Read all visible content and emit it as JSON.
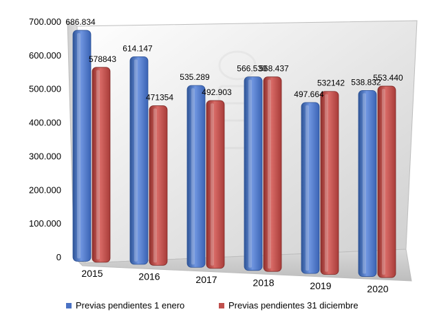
{
  "chart_data": {
    "type": "bar",
    "categories": [
      "2015",
      "2016",
      "2017",
      "2018",
      "2019",
      "2020"
    ],
    "series": [
      {
        "name": "Previas pendientes 1 enero",
        "values": [
          686834,
          614147,
          535289,
          566530,
          497664,
          538832
        ],
        "labels": [
          "686.834",
          "614.147",
          "535.289",
          "566.530",
          "497.664",
          "538.832"
        ],
        "color": "#4a72c4"
      },
      {
        "name": "Previas pendientes 31 diciembre",
        "values": [
          578843,
          471354,
          492903,
          568437,
          532142,
          553440
        ],
        "labels": [
          "578843",
          "471354",
          "492.903",
          "568.437",
          "532142",
          "553.440"
        ],
        "color": "#c0504d"
      }
    ],
    "y_ticks": [
      "0",
      "100.000",
      "200.000",
      "300.000",
      "400.000",
      "500.000",
      "600.000",
      "700.000"
    ],
    "ylim": [
      0,
      700000
    ],
    "grid": false,
    "legend_position": "bottom"
  }
}
